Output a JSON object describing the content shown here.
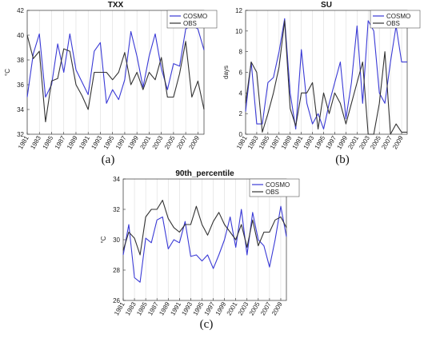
{
  "figure": {
    "captions": [
      "(a)",
      "(b)",
      "(c)"
    ]
  },
  "chart_data": [
    {
      "type": "line",
      "title": "TXX",
      "ylabel": "°C",
      "xlabel": "",
      "ylim": [
        32,
        42
      ],
      "yticks": [
        32,
        34,
        36,
        38,
        40,
        42
      ],
      "x": [
        1981,
        1982,
        1983,
        1984,
        1985,
        1986,
        1987,
        1988,
        1989,
        1990,
        1991,
        1992,
        1993,
        1994,
        1995,
        1996,
        1997,
        1998,
        1999,
        2000,
        2001,
        2002,
        2003,
        2004,
        2005,
        2006,
        2007,
        2008,
        2009,
        2010
      ],
      "xticks": [
        "1981",
        "1983",
        "1985",
        "1987",
        "1989",
        "1991",
        "1993",
        "1995",
        "1997",
        "1999",
        "2001",
        "2003",
        "2005",
        "2007",
        "2009"
      ],
      "legend_position": "top-right",
      "grid": "x",
      "series": [
        {
          "name": "COSMO",
          "color": "#3a3ad6",
          "values": [
            35.0,
            38.5,
            40.1,
            35.0,
            36.0,
            39.3,
            37.0,
            40.1,
            37.2,
            36.2,
            35.2,
            38.7,
            39.4,
            34.5,
            35.6,
            34.8,
            36.4,
            40.3,
            38.3,
            35.8,
            38.3,
            40.1,
            37.3,
            35.6,
            37.7,
            37.5,
            40.5,
            40.8,
            40.5,
            38.8
          ]
        },
        {
          "name": "OBS",
          "color": "#333333",
          "values": [
            40.0,
            38.1,
            38.7,
            33.0,
            36.3,
            36.5,
            38.9,
            38.7,
            36.0,
            35.1,
            34.0,
            37.0,
            37.0,
            37.0,
            36.4,
            37.0,
            38.6,
            36.0,
            37.0,
            35.6,
            37.0,
            36.4,
            38.2,
            35.0,
            35.0,
            36.9,
            39.5,
            35.0,
            36.3,
            34.0
          ]
        }
      ]
    },
    {
      "type": "line",
      "title": "SU",
      "ylabel": "days",
      "xlabel": "",
      "ylim": [
        0,
        12
      ],
      "yticks": [
        0,
        2,
        4,
        6,
        8,
        10,
        12
      ],
      "x": [
        1981,
        1982,
        1983,
        1984,
        1985,
        1986,
        1987,
        1988,
        1989,
        1990,
        1991,
        1992,
        1993,
        1994,
        1995,
        1996,
        1997,
        1998,
        1999,
        2000,
        2001,
        2002,
        2003,
        2004,
        2005,
        2006,
        2007,
        2008,
        2009,
        2010
      ],
      "xticks": [
        "1981",
        "1983",
        "1985",
        "1987",
        "1989",
        "1991",
        "1993",
        "1995",
        "1997",
        "1999",
        "2001",
        "2003",
        "2005",
        "2007",
        "2009"
      ],
      "legend_position": "top-right",
      "grid": "x",
      "series": [
        {
          "name": "COSMO",
          "color": "#3a3ad6",
          "values": [
            2.2,
            7.0,
            1.0,
            1.0,
            5.0,
            5.5,
            8.0,
            11.2,
            4.0,
            0.5,
            8.2,
            3.0,
            1.0,
            2.0,
            0.5,
            3.0,
            5.0,
            7.0,
            1.5,
            5.0,
            10.5,
            3.0,
            11.0,
            10.0,
            4.0,
            3.0,
            7.0,
            10.5,
            7.0,
            7.0
          ]
        },
        {
          "name": "OBS",
          "color": "#333333",
          "values": [
            3.0,
            7.0,
            6.0,
            0.2,
            2.0,
            4.0,
            6.5,
            11.0,
            2.5,
            0.8,
            4.0,
            4.0,
            5.0,
            0.5,
            4.0,
            2.0,
            4.0,
            3.0,
            1.0,
            3.0,
            5.0,
            7.0,
            0.0,
            0.0,
            3.0,
            8.0,
            0.0,
            1.0,
            0.2,
            0.2
          ]
        }
      ]
    },
    {
      "type": "line",
      "title": "90th_percentile",
      "ylabel": "°C",
      "xlabel": "",
      "ylim": [
        26,
        34
      ],
      "yticks": [
        26,
        28,
        30,
        32,
        34
      ],
      "x": [
        1981,
        1982,
        1983,
        1984,
        1985,
        1986,
        1987,
        1988,
        1989,
        1990,
        1991,
        1992,
        1993,
        1994,
        1995,
        1996,
        1997,
        1998,
        1999,
        2000,
        2001,
        2002,
        2003,
        2004,
        2005,
        2006,
        2007,
        2008,
        2009,
        2010
      ],
      "xticks": [
        "1981",
        "1983",
        "1985",
        "1987",
        "1989",
        "1991",
        "1993",
        "1995",
        "1997",
        "1999",
        "2001",
        "2003",
        "2005",
        "2007",
        "2009"
      ],
      "legend_position": "top-right",
      "grid": "x",
      "series": [
        {
          "name": "COSMO",
          "color": "#3a3ad6",
          "values": [
            29.0,
            31.0,
            27.5,
            27.2,
            30.1,
            29.8,
            31.3,
            31.5,
            29.4,
            30.0,
            29.8,
            31.2,
            28.9,
            29.0,
            28.6,
            29.0,
            28.1,
            29.0,
            30.0,
            31.5,
            29.5,
            32.0,
            29.0,
            31.8,
            30.0,
            29.6,
            28.2,
            30.0,
            32.2,
            30.2
          ]
        },
        {
          "name": "OBS",
          "color": "#333333",
          "values": [
            29.3,
            30.5,
            30.1,
            29.0,
            31.5,
            32.0,
            32.0,
            32.6,
            31.4,
            30.8,
            30.5,
            31.0,
            31.0,
            32.2,
            31.0,
            30.3,
            31.2,
            31.8,
            31.0,
            30.5,
            30.0,
            31.0,
            29.5,
            31.3,
            29.6,
            30.5,
            30.5,
            31.3,
            31.5,
            30.8
          ]
        }
      ]
    }
  ]
}
